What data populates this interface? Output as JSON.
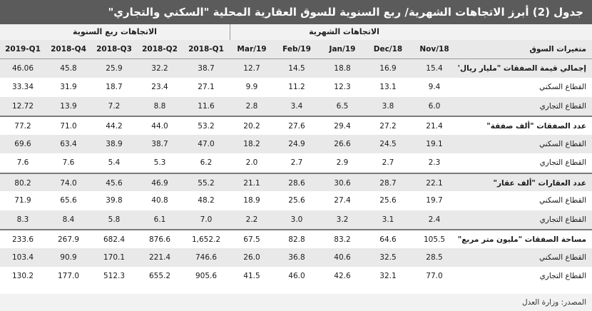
{
  "title": "جدول (2) أبرز الاتجاهات الشهرية/ ربع السنوية للسوق العقارية المحلية \"السكني والتجاري\"",
  "groups": {
    "quarterly": "الاتجاهات ربع السنوية",
    "monthly": "الاتجاهات الشهرية"
  },
  "header": {
    "label": "متغيرات السوق",
    "columns": [
      "2019-Q1",
      "2018-Q4",
      "2018-Q3",
      "2018-Q2",
      "2018-Q1",
      "Mar/19",
      "Feb/19",
      "Jan/19",
      "Dec/18",
      "Nov/18"
    ]
  },
  "rows": [
    {
      "label": "إجمالي قيمة الصفقات \"مليار ريال\"",
      "values": [
        "46.06",
        "45.8",
        "25.9",
        "32.2",
        "38.7",
        "12.7",
        "14.5",
        "18.8",
        "16.9",
        "15.4"
      ]
    },
    {
      "label": "القطاع السكني",
      "values": [
        "33.34",
        "31.9",
        "18.7",
        "23.4",
        "27.1",
        "9.9",
        "11.2",
        "12.3",
        "13.1",
        "9.4"
      ]
    },
    {
      "label": "القطاع التجاري",
      "values": [
        "12.72",
        "13.9",
        "7.2",
        "8.8",
        "11.6",
        "2.8",
        "3.4",
        "6.5",
        "3.8",
        "6.0"
      ]
    },
    {
      "label": "عدد الصفقات \"ألف صفقة\"",
      "values": [
        "77.2",
        "71.0",
        "44.2",
        "44.0",
        "53.2",
        "20.2",
        "27.6",
        "29.4",
        "27.2",
        "21.4"
      ]
    },
    {
      "label": "القطاع السكني",
      "values": [
        "69.6",
        "63.4",
        "38.9",
        "38.7",
        "47.0",
        "18.2",
        "24.9",
        "26.6",
        "24.5",
        "19.1"
      ]
    },
    {
      "label": "القطاع التجاري",
      "values": [
        "7.6",
        "7.6",
        "5.4",
        "5.3",
        "6.2",
        "2.0",
        "2.7",
        "2.9",
        "2.7",
        "2.3"
      ]
    },
    {
      "label": "عدد العقارات \"ألف عقار\"",
      "values": [
        "80.2",
        "74.0",
        "45.6",
        "46.9",
        "55.2",
        "21.1",
        "28.6",
        "30.6",
        "28.7",
        "22.1"
      ]
    },
    {
      "label": "القطاع السكني",
      "values": [
        "71.9",
        "65.6",
        "39.8",
        "40.8",
        "48.2",
        "18.9",
        "25.6",
        "27.4",
        "25.6",
        "19.7"
      ]
    },
    {
      "label": "القطاع التجاري",
      "values": [
        "8.3",
        "8.4",
        "5.8",
        "6.1",
        "7.0",
        "2.2",
        "3.0",
        "3.2",
        "3.1",
        "2.4"
      ]
    },
    {
      "label": "مساحة الصفقات \"مليون متر مربع\"",
      "values": [
        "233.6",
        "267.9",
        "682.4",
        "876.6",
        "1,652.2",
        "67.5",
        "82.8",
        "83.2",
        "64.6",
        "105.5"
      ]
    },
    {
      "label": "القطاع السكني",
      "values": [
        "103.4",
        "90.9",
        "170.1",
        "221.4",
        "746.6",
        "26.0",
        "36.8",
        "40.6",
        "32.5",
        "28.5"
      ]
    },
    {
      "label": "القطاع التجاري",
      "values": [
        "130.2",
        "177.0",
        "512.3",
        "655.2",
        "905.6",
        "41.5",
        "46.0",
        "42.6",
        "32.1",
        "77.0"
      ]
    }
  ],
  "footer": "المصدر: وزارة العدل"
}
